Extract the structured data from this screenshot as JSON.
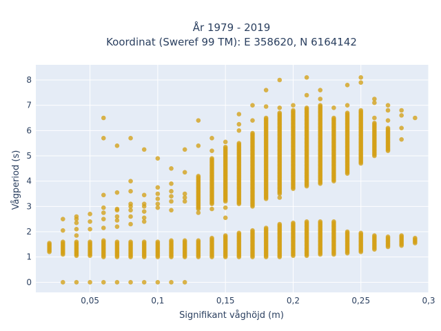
{
  "chart_data": {
    "type": "scatter",
    "title_line1": "År 1979 - 2019",
    "title_line2": "Koordinat (Sweref 99 TM): E 358620, N 6164142",
    "xlabel": "Signifikant våghöjd (m)",
    "ylabel": "Vågperiod (s)",
    "xlim": [
      0.01,
      0.3
    ],
    "ylim": [
      -0.4,
      8.6
    ],
    "x_ticks": [
      0.05,
      0.1,
      0.15,
      0.2,
      0.25,
      0.3
    ],
    "x_tick_labels": [
      "0,05",
      "0,1",
      "0,15",
      "0,2",
      "0,25",
      "0,3"
    ],
    "y_ticks": [
      0,
      1,
      2,
      3,
      4,
      5,
      6,
      7,
      8
    ],
    "y_tick_labels": [
      "0",
      "1",
      "2",
      "3",
      "4",
      "5",
      "6",
      "7",
      "8"
    ],
    "grid": true,
    "background": "#e5ecf6",
    "grid_color": "#ffffff",
    "point_color": "#d4a017",
    "columns": [
      {
        "x": 0.02,
        "zero": false,
        "low": [
          1.2,
          1.55
        ],
        "high": null,
        "outliers": []
      },
      {
        "x": 0.03,
        "zero": true,
        "low": [
          1.1,
          1.6
        ],
        "high": null,
        "outliers": [
          2.05,
          2.5
        ]
      },
      {
        "x": 0.04,
        "zero": true,
        "low": [
          1.05,
          1.6
        ],
        "high": null,
        "outliers": [
          1.85,
          2.1,
          2.35,
          2.5,
          2.6
        ]
      },
      {
        "x": 0.05,
        "zero": true,
        "low": [
          1.05,
          1.6
        ],
        "high": null,
        "outliers": [
          2.1,
          2.4,
          2.7
        ]
      },
      {
        "x": 0.06,
        "zero": true,
        "low": [
          1.0,
          1.65
        ],
        "high": null,
        "outliers": [
          2.15,
          2.5,
          2.75,
          2.95,
          3.45,
          5.7,
          6.5
        ]
      },
      {
        "x": 0.07,
        "zero": true,
        "low": [
          1.0,
          1.6
        ],
        "high": null,
        "outliers": [
          2.2,
          2.45,
          2.6,
          2.85,
          2.9,
          3.55,
          5.4
        ]
      },
      {
        "x": 0.08,
        "zero": true,
        "low": [
          1.0,
          1.6
        ],
        "high": null,
        "outliers": [
          2.3,
          2.6,
          2.85,
          3.0,
          3.1,
          3.6,
          4.0,
          5.7
        ]
      },
      {
        "x": 0.09,
        "zero": true,
        "low": [
          1.0,
          1.6
        ],
        "high": null,
        "outliers": [
          2.4,
          2.55,
          2.8,
          3.0,
          3.1,
          3.45,
          5.25
        ]
      },
      {
        "x": 0.1,
        "zero": true,
        "low": [
          1.0,
          1.6
        ],
        "high": null,
        "outliers": [
          2.95,
          3.1,
          3.3,
          3.5,
          3.75,
          4.9
        ]
      },
      {
        "x": 0.11,
        "zero": true,
        "low": [
          1.0,
          1.65
        ],
        "high": null,
        "outliers": [
          2.85,
          3.2,
          3.4,
          3.6,
          3.9,
          4.5
        ]
      },
      {
        "x": 0.12,
        "zero": true,
        "low": [
          1.0,
          1.65
        ],
        "high": null,
        "outliers": [
          3.2,
          3.35,
          3.5,
          4.35,
          5.25
        ]
      },
      {
        "x": 0.13,
        "zero": false,
        "low": [
          1.0,
          1.65
        ],
        "high": [
          2.9,
          4.2
        ],
        "outliers": [
          2.75,
          5.4,
          6.4
        ]
      },
      {
        "x": 0.14,
        "zero": false,
        "low": [
          1.0,
          1.75
        ],
        "high": [
          3.1,
          4.9
        ],
        "outliers": [
          2.9,
          5.2,
          5.7
        ]
      },
      {
        "x": 0.15,
        "zero": false,
        "low": [
          1.0,
          1.85
        ],
        "high": [
          3.2,
          5.35
        ],
        "outliers": [
          2.55,
          2.95,
          5.55
        ]
      },
      {
        "x": 0.16,
        "zero": false,
        "low": [
          1.0,
          1.95
        ],
        "high": [
          3.1,
          5.5
        ],
        "outliers": [
          6.0,
          6.25,
          6.65
        ]
      },
      {
        "x": 0.17,
        "zero": false,
        "low": [
          1.0,
          2.05
        ],
        "high": [
          3.0,
          5.9
        ],
        "outliers": [
          6.4,
          7.0
        ]
      },
      {
        "x": 0.18,
        "zero": false,
        "low": [
          1.0,
          2.15
        ],
        "high": [
          3.3,
          6.5
        ],
        "outliers": [
          6.95,
          7.6
        ]
      },
      {
        "x": 0.19,
        "zero": false,
        "low": [
          1.0,
          2.3
        ],
        "high": [
          3.5,
          6.7
        ],
        "outliers": [
          3.35,
          6.9,
          8.0
        ]
      },
      {
        "x": 0.2,
        "zero": false,
        "low": [
          1.05,
          2.35
        ],
        "high": [
          3.7,
          6.8
        ],
        "outliers": [
          7.0
        ]
      },
      {
        "x": 0.21,
        "zero": false,
        "low": [
          1.05,
          2.4
        ],
        "high": [
          3.8,
          6.9
        ],
        "outliers": [
          7.4,
          8.1
        ]
      },
      {
        "x": 0.22,
        "zero": false,
        "low": [
          1.1,
          2.4
        ],
        "high": [
          3.9,
          7.0
        ],
        "outliers": [
          7.25,
          7.6
        ]
      },
      {
        "x": 0.23,
        "zero": false,
        "low": [
          1.1,
          2.4
        ],
        "high": [
          4.0,
          6.5
        ],
        "outliers": [
          6.9
        ]
      },
      {
        "x": 0.24,
        "zero": false,
        "low": [
          1.15,
          2.0
        ],
        "high": [
          4.3,
          6.7
        ],
        "outliers": [
          7.0,
          7.8
        ]
      },
      {
        "x": 0.25,
        "zero": false,
        "low": [
          1.2,
          1.95
        ],
        "high": [
          4.7,
          6.8
        ],
        "outliers": [
          7.9,
          8.1
        ]
      },
      {
        "x": 0.26,
        "zero": false,
        "low": [
          1.3,
          1.85
        ],
        "high": [
          5.0,
          6.3
        ],
        "outliers": [
          6.5,
          7.1,
          7.25
        ]
      },
      {
        "x": 0.27,
        "zero": false,
        "low": [
          1.4,
          1.8
        ],
        "high": [
          5.2,
          6.1
        ],
        "outliers": [
          6.4,
          6.8,
          7.0
        ]
      },
      {
        "x": 0.28,
        "zero": false,
        "low": [
          1.45,
          1.85
        ],
        "high": null,
        "outliers": [
          5.65,
          6.1,
          6.6,
          6.8
        ]
      },
      {
        "x": 0.29,
        "zero": false,
        "low": [
          1.55,
          1.75
        ],
        "high": null,
        "outliers": [
          6.5
        ]
      }
    ]
  }
}
